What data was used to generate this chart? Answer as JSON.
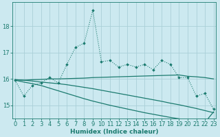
{
  "xlabel": "Humidex (Indice chaleur)",
  "background_color": "#cce9f0",
  "grid_color": "#aacfd8",
  "line_color": "#1a7a6e",
  "x_values": [
    0,
    1,
    2,
    3,
    4,
    5,
    6,
    7,
    8,
    9,
    10,
    11,
    12,
    13,
    14,
    15,
    16,
    17,
    18,
    19,
    20,
    21,
    22,
    23
  ],
  "series_dotted_markers": [
    15.95,
    15.35,
    15.75,
    15.85,
    16.05,
    15.85,
    16.55,
    17.2,
    17.35,
    18.6,
    16.65,
    16.7,
    16.45,
    16.55,
    16.45,
    16.55,
    16.35,
    16.7,
    16.55,
    16.05,
    16.05,
    15.35,
    15.45,
    14.85
  ],
  "series_flat_rise": [
    15.97,
    15.95,
    15.97,
    15.98,
    16.0,
    16.0,
    16.01,
    16.02,
    16.03,
    16.05,
    16.06,
    16.07,
    16.08,
    16.09,
    16.1,
    16.11,
    16.12,
    16.13,
    16.14,
    16.15,
    16.1,
    16.08,
    16.05,
    16.0
  ],
  "series_decline_mid": [
    15.97,
    15.95,
    15.92,
    15.88,
    15.85,
    15.82,
    15.78,
    15.73,
    15.68,
    15.63,
    15.57,
    15.51,
    15.45,
    15.39,
    15.33,
    15.27,
    15.21,
    15.15,
    15.08,
    15.02,
    14.95,
    14.88,
    14.8,
    14.72
  ],
  "series_decline_steep": [
    15.95,
    15.88,
    15.82,
    15.75,
    15.65,
    15.55,
    15.45,
    15.35,
    15.25,
    15.16,
    15.08,
    15.0,
    14.93,
    14.86,
    14.79,
    14.72,
    14.66,
    14.6,
    14.54,
    14.49,
    14.44,
    14.39,
    14.35,
    14.75
  ],
  "ylim": [
    14.5,
    18.9
  ],
  "yticks": [
    15,
    16,
    17,
    18
  ],
  "xticks": [
    0,
    1,
    2,
    3,
    4,
    5,
    6,
    7,
    8,
    9,
    10,
    11,
    12,
    13,
    14,
    15,
    16,
    17,
    18,
    19,
    20,
    21,
    22,
    23
  ],
  "axis_fontsize": 6.5,
  "tick_fontsize": 6.0,
  "lw": 0.9
}
